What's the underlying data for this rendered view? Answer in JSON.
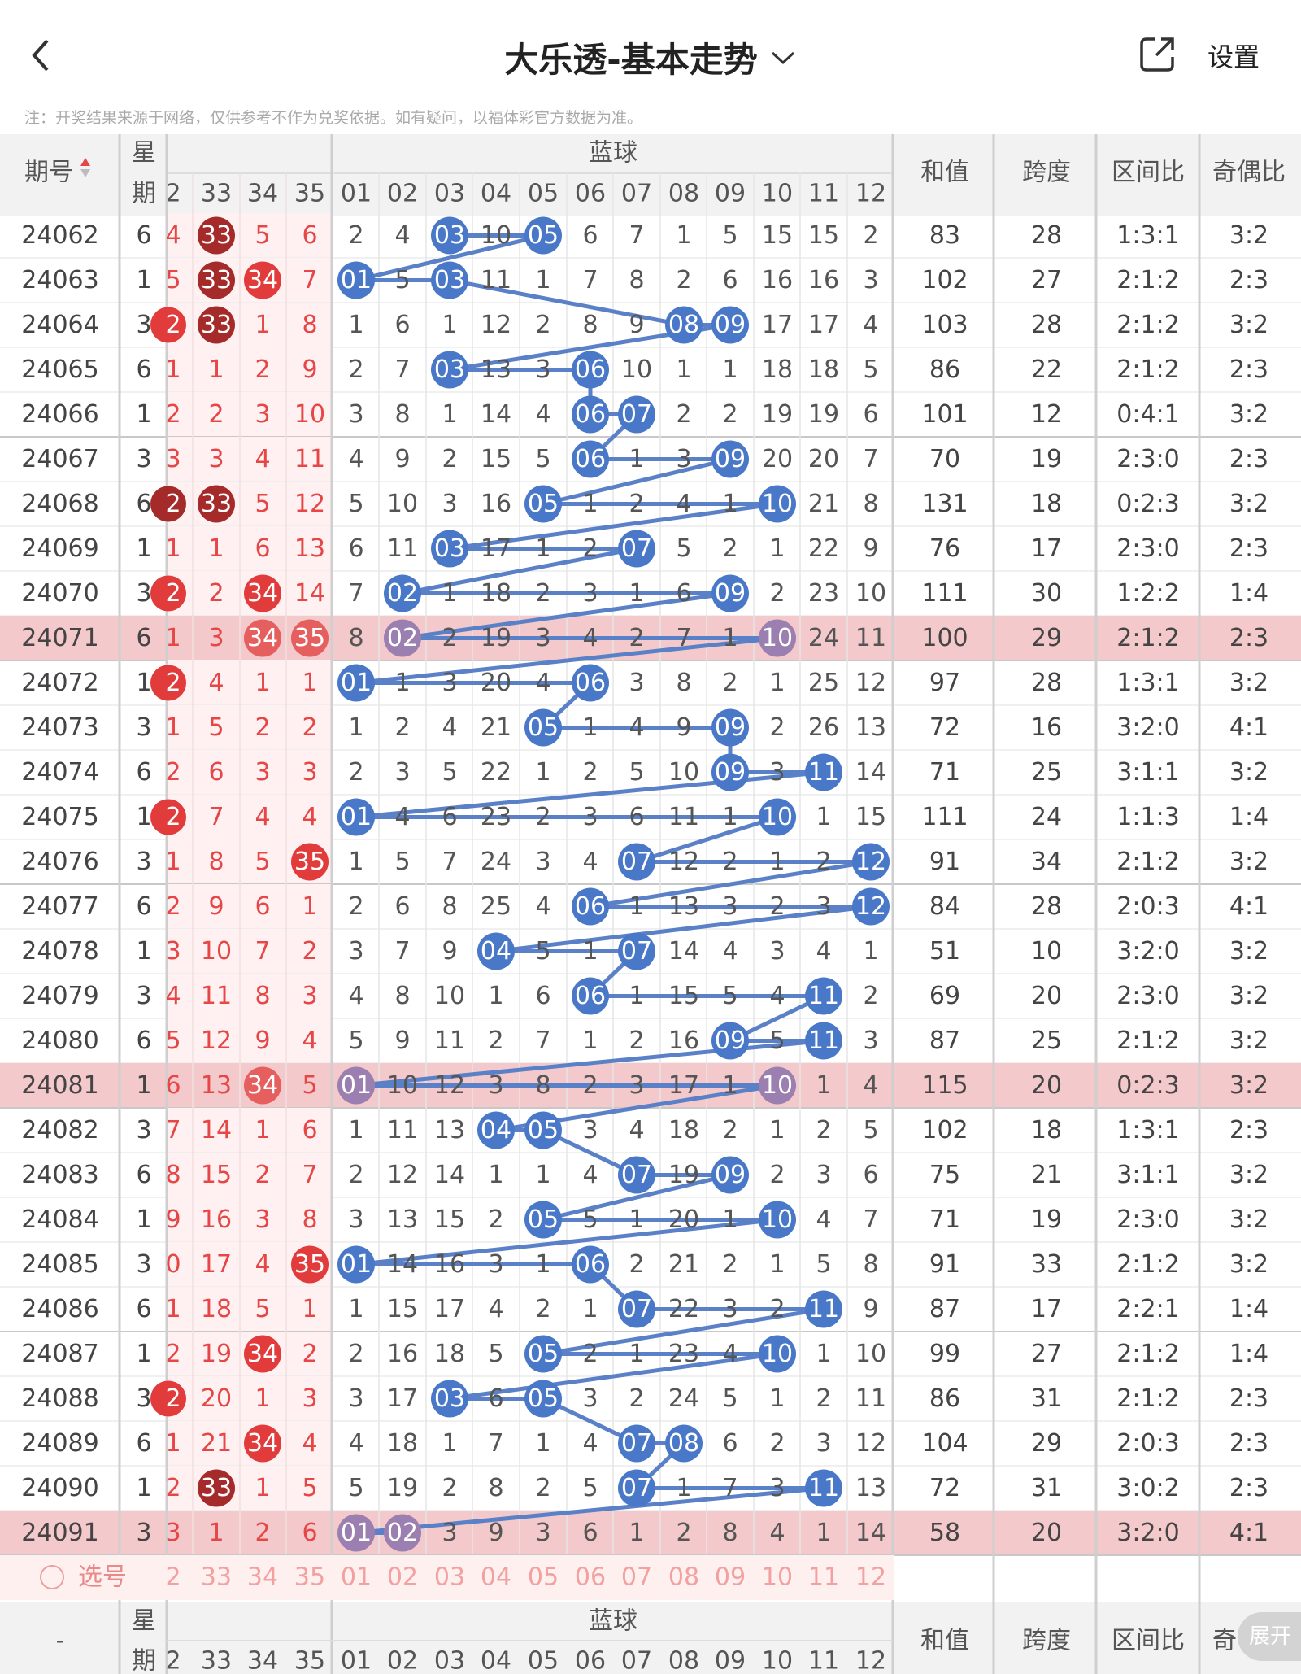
{
  "header": {
    "title": "大乐透-基本走势",
    "settings_label": "设置",
    "back_icon": "chevron-left-icon",
    "share_icon": "share-icon",
    "dropdown_icon": "chevron-down-icon"
  },
  "note": "注：开奖结果来源于网络，仅供参考不作为兑奖依据。如有疑问，以福体彩官方数据为准。",
  "columns": {
    "issue": "期号",
    "week_top": "星",
    "week_bottom": "期",
    "blue_group": "蓝球",
    "red_partial": [
      "2",
      "33",
      "34",
      "35"
    ],
    "blue_numbers": [
      "01",
      "02",
      "03",
      "04",
      "05",
      "06",
      "07",
      "08",
      "09",
      "10",
      "11",
      "12"
    ],
    "sum": "和值",
    "span": "跨度",
    "zone": "区间比",
    "odd_even": "奇偶比",
    "odd_even_cut": "奇"
  },
  "colors": {
    "red_text": "#e64646",
    "dark_red_ball": "#a52a2a",
    "red_ball": "#e23b3b",
    "blue_ball": "#4a78c8",
    "line": "#5a80c8",
    "highlight_row": "#f3c9cb",
    "select_row": "#fdf0ef"
  },
  "rows": [
    {
      "issue": "24062",
      "week": "6",
      "edge": "4",
      "r33": "33",
      "r34": "5",
      "r35": "6",
      "blue": [
        2,
        4,
        "03",
        10,
        "05",
        6,
        7,
        1,
        5,
        15,
        15,
        2
      ],
      "sum": "83",
      "span": "28",
      "zone": "1:3:1",
      "oe": "3:2"
    },
    {
      "issue": "24063",
      "week": "1",
      "edge": "5",
      "r33": "33",
      "r34": "34",
      "r35": "7",
      "blue": [
        "01",
        5,
        "03",
        11,
        1,
        7,
        8,
        2,
        6,
        16,
        16,
        3
      ],
      "sum": "102",
      "span": "27",
      "zone": "2:1:2",
      "oe": "2:3"
    },
    {
      "issue": "24064",
      "week": "3",
      "edge": "2",
      "r33": "33",
      "r34": "1",
      "r35": "8",
      "blue": [
        1,
        6,
        1,
        12,
        2,
        8,
        9,
        "08",
        "09",
        17,
        17,
        4
      ],
      "sum": "103",
      "span": "28",
      "zone": "2:1:2",
      "oe": "3:2"
    },
    {
      "issue": "24065",
      "week": "6",
      "edge": "1",
      "r33": "1",
      "r34": "2",
      "r35": "9",
      "blue": [
        2,
        7,
        "03",
        13,
        3,
        "06",
        10,
        1,
        1,
        18,
        18,
        5
      ],
      "sum": "86",
      "span": "22",
      "zone": "2:1:2",
      "oe": "2:3"
    },
    {
      "issue": "24066",
      "week": "1",
      "edge": "2",
      "r33": "2",
      "r34": "3",
      "r35": "10",
      "blue": [
        3,
        8,
        1,
        14,
        4,
        "06",
        "07",
        2,
        2,
        19,
        19,
        6
      ],
      "sum": "101",
      "span": "12",
      "zone": "0:4:1",
      "oe": "3:2"
    },
    {
      "issue": "24067",
      "week": "3",
      "edge": "3",
      "r33": "3",
      "r34": "4",
      "r35": "11",
      "blue": [
        4,
        9,
        2,
        15,
        5,
        "06",
        1,
        3,
        "09",
        20,
        20,
        7
      ],
      "sum": "70",
      "span": "19",
      "zone": "2:3:0",
      "oe": "2:3"
    },
    {
      "issue": "24068",
      "week": "6",
      "edge": "2",
      "r33": "33",
      "r34": "5",
      "r35": "12",
      "blue": [
        5,
        10,
        3,
        16,
        "05",
        1,
        2,
        4,
        1,
        "10",
        21,
        8
      ],
      "sum": "131",
      "span": "18",
      "zone": "0:2:3",
      "oe": "3:2"
    },
    {
      "issue": "24069",
      "week": "1",
      "edge": "1",
      "r33": "1",
      "r34": "6",
      "r35": "13",
      "blue": [
        6,
        11,
        "03",
        17,
        1,
        2,
        "07",
        5,
        2,
        1,
        22,
        9
      ],
      "sum": "76",
      "span": "17",
      "zone": "2:3:0",
      "oe": "2:3"
    },
    {
      "issue": "24070",
      "week": "3",
      "edge": "2",
      "r33": "2",
      "r34": "34",
      "r35": "14",
      "blue": [
        7,
        "02",
        1,
        18,
        2,
        3,
        1,
        6,
        "09",
        2,
        23,
        10
      ],
      "sum": "111",
      "span": "30",
      "zone": "1:2:2",
      "oe": "1:4"
    },
    {
      "issue": "24071",
      "week": "6",
      "edge": "1",
      "r33": "3",
      "r34": "34",
      "r35": "35",
      "blue": [
        8,
        "02",
        2,
        19,
        3,
        4,
        2,
        7,
        1,
        "10",
        24,
        11
      ],
      "sum": "100",
      "span": "29",
      "zone": "2:1:2",
      "oe": "2:3"
    },
    {
      "issue": "24072",
      "week": "1",
      "edge": "2",
      "r33": "4",
      "r34": "1",
      "r35": "1",
      "blue": [
        "01",
        1,
        3,
        20,
        4,
        "06",
        3,
        8,
        2,
        1,
        25,
        12
      ],
      "sum": "97",
      "span": "28",
      "zone": "1:3:1",
      "oe": "3:2"
    },
    {
      "issue": "24073",
      "week": "3",
      "edge": "1",
      "r33": "5",
      "r34": "2",
      "r35": "2",
      "blue": [
        1,
        2,
        4,
        21,
        "05",
        1,
        4,
        9,
        "09",
        2,
        26,
        13
      ],
      "sum": "72",
      "span": "16",
      "zone": "3:2:0",
      "oe": "4:1"
    },
    {
      "issue": "24074",
      "week": "6",
      "edge": "2",
      "r33": "6",
      "r34": "3",
      "r35": "3",
      "blue": [
        2,
        3,
        5,
        22,
        1,
        2,
        5,
        10,
        "09",
        3,
        "11",
        14
      ],
      "sum": "71",
      "span": "25",
      "zone": "3:1:1",
      "oe": "3:2"
    },
    {
      "issue": "24075",
      "week": "1",
      "edge": "2",
      "r33": "7",
      "r34": "4",
      "r35": "4",
      "blue": [
        "01",
        4,
        6,
        23,
        2,
        3,
        6,
        11,
        1,
        "10",
        1,
        15
      ],
      "sum": "111",
      "span": "24",
      "zone": "1:1:3",
      "oe": "1:4"
    },
    {
      "issue": "24076",
      "week": "3",
      "edge": "1",
      "r33": "8",
      "r34": "5",
      "r35": "35",
      "blue": [
        1,
        5,
        7,
        24,
        3,
        4,
        "07",
        12,
        2,
        1,
        2,
        "12"
      ],
      "sum": "91",
      "span": "34",
      "zone": "2:1:2",
      "oe": "3:2"
    },
    {
      "issue": "24077",
      "week": "6",
      "edge": "2",
      "r33": "9",
      "r34": "6",
      "r35": "1",
      "blue": [
        2,
        6,
        8,
        25,
        4,
        "06",
        1,
        13,
        3,
        2,
        3,
        "12"
      ],
      "sum": "84",
      "span": "28",
      "zone": "2:0:3",
      "oe": "4:1"
    },
    {
      "issue": "24078",
      "week": "1",
      "edge": "3",
      "r33": "10",
      "r34": "7",
      "r35": "2",
      "blue": [
        3,
        7,
        9,
        "04",
        5,
        1,
        "07",
        14,
        4,
        3,
        4,
        1
      ],
      "sum": "51",
      "span": "10",
      "zone": "3:2:0",
      "oe": "3:2"
    },
    {
      "issue": "24079",
      "week": "3",
      "edge": "4",
      "r33": "11",
      "r34": "8",
      "r35": "3",
      "blue": [
        4,
        8,
        10,
        1,
        6,
        "06",
        1,
        15,
        5,
        4,
        "11",
        2
      ],
      "sum": "69",
      "span": "20",
      "zone": "2:3:0",
      "oe": "3:2"
    },
    {
      "issue": "24080",
      "week": "6",
      "edge": "5",
      "r33": "12",
      "r34": "9",
      "r35": "4",
      "blue": [
        5,
        9,
        11,
        2,
        7,
        1,
        2,
        16,
        "09",
        5,
        "11",
        3
      ],
      "sum": "87",
      "span": "25",
      "zone": "2:1:2",
      "oe": "3:2"
    },
    {
      "issue": "24081",
      "week": "1",
      "edge": "6",
      "r33": "13",
      "r34": "34",
      "r35": "5",
      "blue": [
        "01",
        10,
        12,
        3,
        8,
        2,
        3,
        17,
        1,
        "10",
        1,
        4
      ],
      "sum": "115",
      "span": "20",
      "zone": "0:2:3",
      "oe": "3:2"
    },
    {
      "issue": "24082",
      "week": "3",
      "edge": "7",
      "r33": "14",
      "r34": "1",
      "r35": "6",
      "blue": [
        1,
        11,
        13,
        "04",
        "05",
        3,
        4,
        18,
        2,
        1,
        2,
        5
      ],
      "sum": "102",
      "span": "18",
      "zone": "1:3:1",
      "oe": "2:3"
    },
    {
      "issue": "24083",
      "week": "6",
      "edge": "8",
      "r33": "15",
      "r34": "2",
      "r35": "7",
      "blue": [
        2,
        12,
        14,
        1,
        1,
        4,
        "07",
        19,
        "09",
        2,
        3,
        6
      ],
      "sum": "75",
      "span": "21",
      "zone": "3:1:1",
      "oe": "3:2"
    },
    {
      "issue": "24084",
      "week": "1",
      "edge": "9",
      "r33": "16",
      "r34": "3",
      "r35": "8",
      "blue": [
        3,
        13,
        15,
        2,
        "05",
        5,
        1,
        20,
        1,
        "10",
        4,
        7
      ],
      "sum": "71",
      "span": "19",
      "zone": "2:3:0",
      "oe": "3:2"
    },
    {
      "issue": "24085",
      "week": "3",
      "edge": "0",
      "r33": "17",
      "r34": "4",
      "r35": "35",
      "blue": [
        "01",
        14,
        16,
        3,
        1,
        "06",
        2,
        21,
        2,
        1,
        5,
        8
      ],
      "sum": "91",
      "span": "33",
      "zone": "2:1:2",
      "oe": "3:2"
    },
    {
      "issue": "24086",
      "week": "6",
      "edge": "1",
      "r33": "18",
      "r34": "5",
      "r35": "1",
      "blue": [
        1,
        15,
        17,
        4,
        2,
        1,
        "07",
        22,
        3,
        2,
        "11",
        9
      ],
      "sum": "87",
      "span": "17",
      "zone": "2:2:1",
      "oe": "1:4"
    },
    {
      "issue": "24087",
      "week": "1",
      "edge": "2",
      "r33": "19",
      "r34": "34",
      "r35": "2",
      "blue": [
        2,
        16,
        18,
        5,
        "05",
        2,
        1,
        23,
        4,
        "10",
        1,
        10
      ],
      "sum": "99",
      "span": "27",
      "zone": "2:1:2",
      "oe": "1:4"
    },
    {
      "issue": "24088",
      "week": "3",
      "edge": "2",
      "r33": "20",
      "r34": "1",
      "r35": "3",
      "blue": [
        3,
        17,
        "03",
        6,
        "05",
        3,
        2,
        24,
        5,
        1,
        2,
        11
      ],
      "sum": "86",
      "span": "31",
      "zone": "2:1:2",
      "oe": "2:3"
    },
    {
      "issue": "24089",
      "week": "6",
      "edge": "1",
      "r33": "21",
      "r34": "34",
      "r35": "4",
      "blue": [
        4,
        18,
        1,
        7,
        1,
        4,
        "07",
        "08",
        6,
        2,
        3,
        12
      ],
      "sum": "104",
      "span": "29",
      "zone": "2:0:3",
      "oe": "2:3"
    },
    {
      "issue": "24090",
      "week": "1",
      "edge": "2",
      "r33": "33",
      "r34": "1",
      "r35": "5",
      "blue": [
        5,
        19,
        2,
        8,
        2,
        5,
        "07",
        1,
        7,
        3,
        "11",
        13
      ],
      "sum": "72",
      "span": "31",
      "zone": "3:0:2",
      "oe": "2:3"
    },
    {
      "issue": "24091",
      "week": "3",
      "edge": "3",
      "r33": "1",
      "r34": "2",
      "r35": "6",
      "blue": [
        "01",
        "02",
        3,
        9,
        3,
        6,
        1,
        2,
        8,
        4,
        1,
        14
      ],
      "sum": "58",
      "span": "20",
      "zone": "3:2:0",
      "oe": "4:1"
    }
  ],
  "select_row": {
    "label": "选号",
    "edge": "2",
    "red": [
      "33",
      "34",
      "35"
    ],
    "blue": [
      "01",
      "02",
      "03",
      "04",
      "05",
      "06",
      "07",
      "08",
      "09",
      "10",
      "11",
      "12"
    ]
  },
  "footer": {
    "issue": "-"
  },
  "expand_label": "展开"
}
